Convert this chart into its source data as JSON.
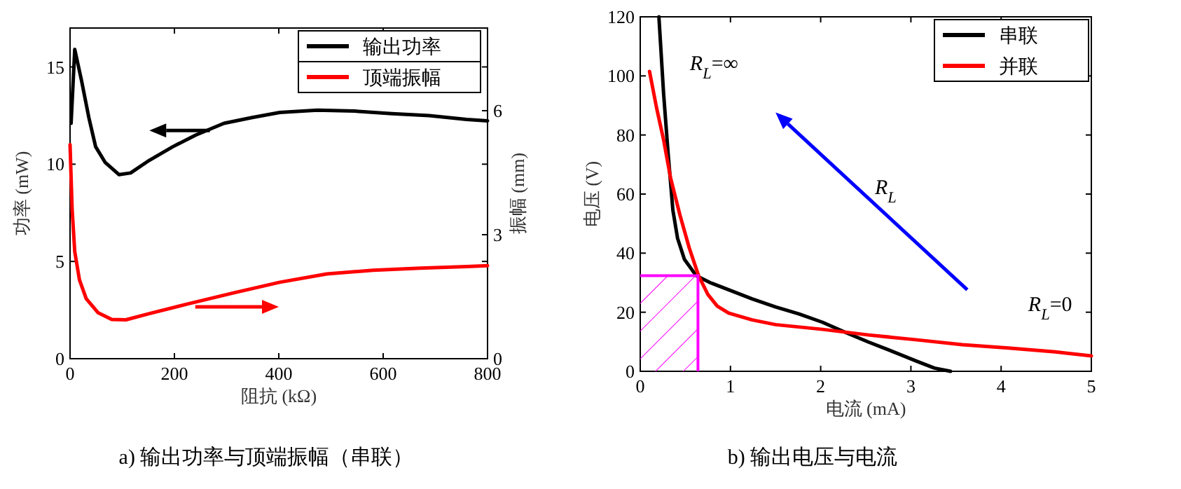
{
  "chart_data": [
    {
      "type": "line",
      "title": "a)  输出功率与顶端振幅（串联）",
      "xlabel": "阻抗 (kΩ)",
      "ylabel": "功率 (mW)",
      "y2label": "振幅 (mm)",
      "xlim": [
        0,
        800
      ],
      "xticks": [
        0,
        200,
        400,
        600,
        800
      ],
      "ylim": [
        0,
        17
      ],
      "yticks": [
        0,
        5,
        10,
        15
      ],
      "y2lim": [
        0,
        8
      ],
      "y2ticks": [
        0,
        3,
        6
      ],
      "grid": false,
      "legend": "top right",
      "series": [
        {
          "name": "输出功率",
          "color": "#000000",
          "x": [
            2,
            9,
            22,
            36,
            49,
            67,
            94,
            116,
            152,
            197,
            241,
            295,
            349,
            402,
            474,
            545,
            617,
            688,
            760,
            800
          ],
          "values": [
            12.1,
            15.9,
            14.3,
            12.4,
            10.9,
            10.1,
            9.46,
            9.55,
            10.2,
            10.9,
            11.5,
            12.1,
            12.4,
            12.66,
            12.78,
            12.73,
            12.6,
            12.5,
            12.3,
            12.23
          ]
        },
        {
          "name": "顶端振幅",
          "color": "#ff0000",
          "axis": "y2",
          "x": [
            0,
            4,
            9,
            18,
            31,
            54,
            80,
            107,
            152,
            224,
            313,
            402,
            492,
            581,
            671,
            760,
            800
          ],
          "values": [
            5.18,
            3.61,
            2.59,
            1.91,
            1.45,
            1.11,
            0.95,
            0.94,
            1.09,
            1.32,
            1.59,
            1.85,
            2.05,
            2.14,
            2.19,
            2.23,
            2.25
          ]
        }
      ]
    },
    {
      "type": "line",
      "title": "b)  输出电压与电流",
      "xlabel": "电流 (mA)",
      "ylabel": "电压 (V)",
      "xlim": [
        0,
        5
      ],
      "xticks": [
        0,
        1,
        2,
        3,
        4,
        5
      ],
      "ylim": [
        0,
        120
      ],
      "yticks": [
        0,
        20,
        40,
        60,
        80,
        100,
        120
      ],
      "grid": false,
      "legend": "top right",
      "series": [
        {
          "name": "串联",
          "color": "#000000",
          "x": [
            0.207,
            0.259,
            0.31,
            0.362,
            0.414,
            0.49,
            0.62,
            0.776,
            0.98,
            1.24,
            1.5,
            1.76,
            2.02,
            2.28,
            2.53,
            2.79,
            3.05,
            3.26,
            3.44
          ],
          "values": [
            120,
            94,
            73.4,
            54.5,
            45,
            37.9,
            32.4,
            30,
            27.6,
            24.5,
            21.8,
            19.4,
            16.6,
            13.1,
            9.9,
            6.8,
            3.6,
            1.1,
            0
          ]
        },
        {
          "name": "并联",
          "color": "#ff0000",
          "x": [
            0.103,
            0.181,
            0.26,
            0.336,
            0.44,
            0.543,
            0.646,
            0.75,
            0.853,
            0.98,
            1.24,
            1.5,
            2.02,
            2.53,
            3.05,
            3.57,
            4.08,
            4.6,
            5
          ],
          "values": [
            101.5,
            89.2,
            78.2,
            65.5,
            52.9,
            41.8,
            32.4,
            26,
            22.1,
            19.7,
            17.4,
            15.8,
            14.2,
            12.3,
            10.7,
            9,
            7.9,
            6.6,
            5.2
          ]
        },
        {
          "type": "area",
          "color": "#ff00ff",
          "x": [
            0,
            0.64
          ],
          "values": [
            32.4,
            32.4
          ]
        }
      ],
      "annotations": [
        "R$_{L}$=∞",
        "R$_{L}$",
        "R$_{L}$=0"
      ]
    }
  ]
}
